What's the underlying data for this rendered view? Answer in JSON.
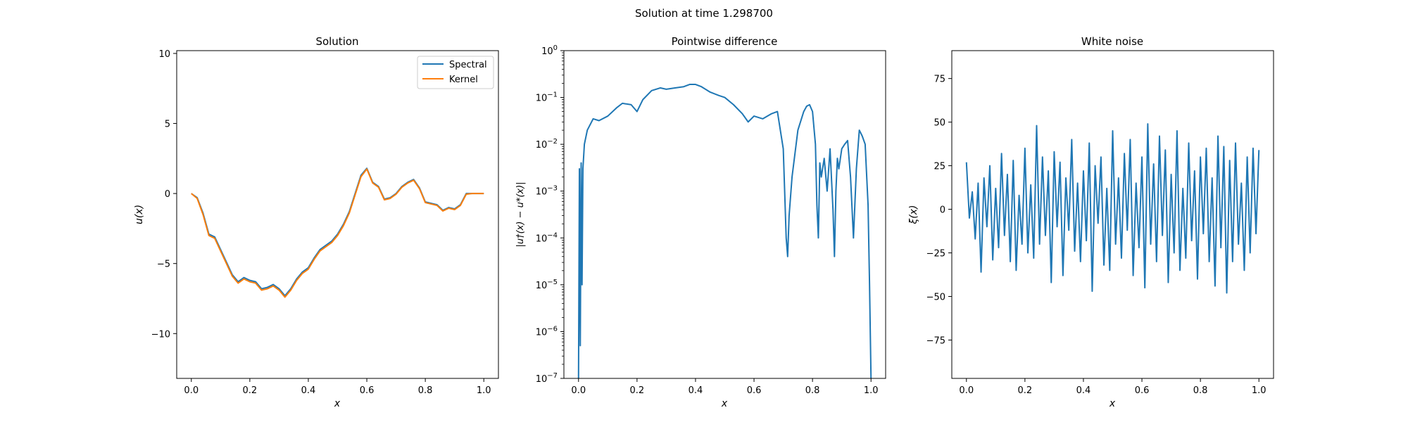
{
  "suptitle": "Solution at time 1.298700",
  "chart_data": [
    {
      "type": "line",
      "title": "Solution",
      "xlabel": "x",
      "ylabel": "u(x)",
      "xlim": [
        -0.05,
        1.05
      ],
      "ylim": [
        -13.2,
        10.2
      ],
      "xticks": [
        0.0,
        0.2,
        0.4,
        0.6,
        0.8,
        1.0
      ],
      "xtick_labels": [
        "0.0",
        "0.2",
        "0.4",
        "0.6",
        "0.8",
        "1.0"
      ],
      "yticks": [
        -10,
        -5,
        0,
        5,
        10
      ],
      "ytick_labels": [
        "−10",
        "−5",
        "0",
        "5",
        "10"
      ],
      "grid": false,
      "legend": "top-right",
      "series": [
        {
          "name": "Spectral",
          "color": "#1f77b4",
          "x": [
            0.0,
            0.02,
            0.04,
            0.06,
            0.08,
            0.1,
            0.12,
            0.14,
            0.16,
            0.18,
            0.2,
            0.22,
            0.24,
            0.26,
            0.28,
            0.3,
            0.32,
            0.34,
            0.36,
            0.38,
            0.4,
            0.42,
            0.44,
            0.46,
            0.48,
            0.5,
            0.52,
            0.54,
            0.56,
            0.58,
            0.6,
            0.62,
            0.64,
            0.66,
            0.68,
            0.7,
            0.72,
            0.74,
            0.76,
            0.78,
            0.8,
            0.82,
            0.84,
            0.86,
            0.88,
            0.9,
            0.92,
            0.94,
            0.96,
            0.98,
            1.0
          ],
          "values": [
            0.0,
            -0.3,
            -1.4,
            -2.9,
            -3.1,
            -4.0,
            -4.9,
            -5.8,
            -6.3,
            -6.0,
            -6.2,
            -6.3,
            -6.8,
            -6.7,
            -6.5,
            -6.8,
            -7.3,
            -6.8,
            -6.1,
            -5.6,
            -5.3,
            -4.6,
            -4.0,
            -3.7,
            -3.4,
            -2.9,
            -2.2,
            -1.3,
            0.0,
            1.3,
            1.8,
            0.8,
            0.5,
            -0.4,
            -0.3,
            0.0,
            0.5,
            0.8,
            1.0,
            0.4,
            -0.6,
            -0.7,
            -0.8,
            -1.2,
            -1.0,
            -1.1,
            -0.8,
            0.0,
            0.0,
            0.0,
            0.0
          ]
        },
        {
          "name": "Kernel",
          "color": "#ff7f0e",
          "x": [
            0.0,
            0.02,
            0.04,
            0.06,
            0.08,
            0.1,
            0.12,
            0.14,
            0.16,
            0.18,
            0.2,
            0.22,
            0.24,
            0.26,
            0.28,
            0.3,
            0.32,
            0.34,
            0.36,
            0.38,
            0.4,
            0.42,
            0.44,
            0.46,
            0.48,
            0.5,
            0.52,
            0.54,
            0.56,
            0.58,
            0.6,
            0.62,
            0.64,
            0.66,
            0.68,
            0.7,
            0.72,
            0.74,
            0.76,
            0.78,
            0.8,
            0.82,
            0.84,
            0.86,
            0.88,
            0.9,
            0.92,
            0.94,
            0.96,
            0.98,
            1.0
          ],
          "values": [
            0.0,
            -0.35,
            -1.5,
            -3.0,
            -3.2,
            -4.1,
            -5.0,
            -5.9,
            -6.4,
            -6.1,
            -6.3,
            -6.4,
            -6.9,
            -6.8,
            -6.6,
            -6.9,
            -7.4,
            -6.9,
            -6.2,
            -5.7,
            -5.4,
            -4.7,
            -4.1,
            -3.8,
            -3.5,
            -3.0,
            -2.3,
            -1.4,
            -0.1,
            1.2,
            1.75,
            0.75,
            0.45,
            -0.45,
            -0.35,
            -0.05,
            0.45,
            0.75,
            0.95,
            0.35,
            -0.65,
            -0.75,
            -0.85,
            -1.25,
            -1.05,
            -1.15,
            -0.85,
            -0.05,
            0.0,
            0.0,
            0.0
          ]
        }
      ]
    },
    {
      "type": "line",
      "title": "Pointwise difference",
      "xlabel": "x",
      "ylabel": "|u†(x) − u*(x)|",
      "xscale": "linear",
      "yscale": "log",
      "xlim": [
        -0.05,
        1.05
      ],
      "ylim": [
        1e-07,
        1
      ],
      "xticks": [
        0.0,
        0.2,
        0.4,
        0.6,
        0.8,
        1.0
      ],
      "xtick_labels": [
        "0.0",
        "0.2",
        "0.4",
        "0.6",
        "0.8",
        "1.0"
      ],
      "yticks": [
        1e-07,
        1e-06,
        1e-05,
        0.0001,
        0.001,
        0.01,
        0.1,
        1
      ],
      "ytick_labels": [
        {
          "base": "10",
          "exp": "−7"
        },
        {
          "base": "10",
          "exp": "−6"
        },
        {
          "base": "10",
          "exp": "−5"
        },
        {
          "base": "10",
          "exp": "−4"
        },
        {
          "base": "10",
          "exp": "−3"
        },
        {
          "base": "10",
          "exp": "−2"
        },
        {
          "base": "10",
          "exp": "−1"
        },
        {
          "base": "10",
          "exp": "0"
        }
      ],
      "grid": false,
      "series": [
        {
          "color": "#1f77b4",
          "x": [
            0.0,
            0.003,
            0.006,
            0.009,
            0.012,
            0.015,
            0.02,
            0.03,
            0.05,
            0.07,
            0.1,
            0.13,
            0.15,
            0.18,
            0.2,
            0.22,
            0.25,
            0.28,
            0.3,
            0.33,
            0.36,
            0.38,
            0.4,
            0.42,
            0.45,
            0.48,
            0.5,
            0.53,
            0.56,
            0.58,
            0.6,
            0.63,
            0.66,
            0.68,
            0.7,
            0.71,
            0.715,
            0.72,
            0.73,
            0.75,
            0.77,
            0.78,
            0.79,
            0.8,
            0.81,
            0.815,
            0.82,
            0.825,
            0.83,
            0.84,
            0.85,
            0.86,
            0.87,
            0.875,
            0.88,
            0.885,
            0.89,
            0.9,
            0.91,
            0.92,
            0.93,
            0.94,
            0.95,
            0.96,
            0.97,
            0.98,
            0.99,
            0.995,
            1.0
          ],
          "values": [
            1e-07,
            0.003,
            5e-07,
            0.004,
            1e-05,
            0.003,
            0.01,
            0.02,
            0.035,
            0.032,
            0.04,
            0.06,
            0.075,
            0.07,
            0.05,
            0.09,
            0.14,
            0.16,
            0.15,
            0.16,
            0.17,
            0.19,
            0.19,
            0.17,
            0.13,
            0.11,
            0.1,
            0.07,
            0.045,
            0.03,
            0.04,
            0.035,
            0.045,
            0.05,
            0.008,
            0.0001,
            4e-05,
            0.0003,
            0.002,
            0.02,
            0.05,
            0.065,
            0.07,
            0.05,
            0.01,
            0.0005,
            0.0001,
            0.004,
            0.002,
            0.005,
            0.001,
            0.008,
            0.0004,
            4e-05,
            0.001,
            0.005,
            0.003,
            0.008,
            0.01,
            0.012,
            0.002,
            0.0001,
            0.003,
            0.02,
            0.015,
            0.01,
            0.0005,
            1e-05,
            1e-07
          ]
        }
      ]
    },
    {
      "type": "line",
      "title": "White noise",
      "xlabel": "x",
      "ylabel": "ξ(x)",
      "xlim": [
        -0.05,
        1.05
      ],
      "ylim": [
        -97,
        91
      ],
      "xticks": [
        0.0,
        0.2,
        0.4,
        0.6,
        0.8,
        1.0
      ],
      "xtick_labels": [
        "0.0",
        "0.2",
        "0.4",
        "0.6",
        "0.8",
        "1.0"
      ],
      "yticks": [
        -75,
        -50,
        -25,
        0,
        25,
        50,
        75
      ],
      "ytick_labels": [
        "−75",
        "−50",
        "−25",
        "0",
        "25",
        "50",
        "75"
      ],
      "grid": false,
      "series": [
        {
          "color": "#1f77b4",
          "x": [
            0.0,
            0.01,
            0.02,
            0.03,
            0.04,
            0.05,
            0.06,
            0.07,
            0.08,
            0.09,
            0.1,
            0.11,
            0.12,
            0.13,
            0.14,
            0.15,
            0.16,
            0.17,
            0.18,
            0.19,
            0.2,
            0.21,
            0.22,
            0.23,
            0.24,
            0.25,
            0.26,
            0.27,
            0.28,
            0.29,
            0.3,
            0.31,
            0.32,
            0.33,
            0.34,
            0.35,
            0.36,
            0.37,
            0.38,
            0.39,
            0.4,
            0.41,
            0.42,
            0.43,
            0.44,
            0.45,
            0.46,
            0.47,
            0.48,
            0.49,
            0.5,
            0.51,
            0.52,
            0.53,
            0.54,
            0.55,
            0.56,
            0.57,
            0.58,
            0.59,
            0.6,
            0.61,
            0.62,
            0.63,
            0.64,
            0.65,
            0.66,
            0.67,
            0.68,
            0.69,
            0.7,
            0.71,
            0.72,
            0.73,
            0.74,
            0.75,
            0.76,
            0.77,
            0.78,
            0.79,
            0.8,
            0.81,
            0.82,
            0.83,
            0.84,
            0.85,
            0.86,
            0.87,
            0.88,
            0.89,
            0.9,
            0.91,
            0.92,
            0.93,
            0.94,
            0.95,
            0.96,
            0.97,
            0.98,
            0.99,
            1.0
          ],
          "values": [
            27,
            -5,
            10,
            -17,
            15,
            -36,
            18,
            -10,
            25,
            -29,
            12,
            -22,
            32,
            -15,
            20,
            -30,
            28,
            -35,
            8,
            -20,
            35,
            -25,
            14,
            -28,
            48,
            -20,
            30,
            -15,
            22,
            -42,
            33,
            -10,
            27,
            -38,
            18,
            -12,
            40,
            -24,
            15,
            -30,
            22,
            -18,
            38,
            -47,
            25,
            -8,
            30,
            -32,
            12,
            -35,
            45,
            -20,
            18,
            -28,
            32,
            -12,
            40,
            -38,
            15,
            -22,
            30,
            -45,
            49,
            -20,
            26,
            -30,
            42,
            -15,
            34,
            -42,
            20,
            -25,
            45,
            -35,
            12,
            -28,
            38,
            -18,
            22,
            -40,
            30,
            -14,
            35,
            -30,
            18,
            -44,
            42,
            -22,
            36,
            -48,
            28,
            -30,
            38,
            -20,
            15,
            -35,
            30,
            -25,
            35,
            -14,
            34
          ]
        }
      ]
    }
  ]
}
